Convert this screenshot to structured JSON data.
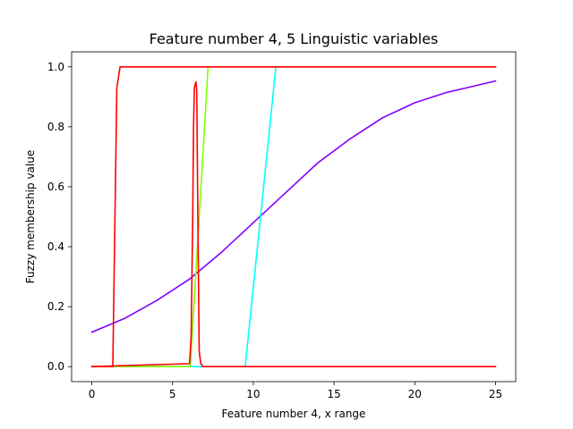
{
  "chart_data": {
    "type": "line",
    "title": "Feature number 4, 5 Linguistic variables",
    "xlabel": "Feature number 4, x range",
    "ylabel": "Fuzzy membership value",
    "xlim": [
      -1.25,
      26.25
    ],
    "ylim": [
      -0.05,
      1.05
    ],
    "xticks": [
      0,
      5,
      10,
      15,
      20,
      25
    ],
    "yticks": [
      0.0,
      0.2,
      0.4,
      0.6,
      0.8,
      1.0
    ],
    "xtick_labels": [
      "0",
      "5",
      "10",
      "15",
      "20",
      "25"
    ],
    "ytick_labels": [
      "0.0",
      "0.2",
      "0.4",
      "0.6",
      "0.8",
      "1.0"
    ],
    "grid": false,
    "legend": "none",
    "series": [
      {
        "color": "#8000ff",
        "x": [
          0,
          2,
          4,
          6,
          8,
          10,
          12,
          14,
          16,
          18,
          20,
          22,
          24,
          25
        ],
        "y": [
          0.115,
          0.16,
          0.22,
          0.29,
          0.38,
          0.48,
          0.58,
          0.68,
          0.76,
          0.83,
          0.88,
          0.915,
          0.94,
          0.953
        ]
      },
      {
        "color": "#00ffff",
        "x": [
          0,
          9.5,
          11.4,
          25
        ],
        "y": [
          0.0,
          0.0,
          1.0,
          1.0
        ]
      },
      {
        "color": "#80ff00",
        "x": [
          0,
          6.1,
          7.2,
          25
        ],
        "y": [
          0.0,
          0.0,
          1.0,
          1.0
        ]
      },
      {
        "color": "#ff0000",
        "x": [
          0,
          6.05,
          6.15,
          6.25,
          6.3,
          6.35,
          6.45,
          6.5,
          6.55,
          6.65,
          6.75,
          6.9,
          25
        ],
        "y": [
          0.0,
          0.01,
          0.1,
          0.5,
          0.8,
          0.93,
          0.95,
          0.92,
          0.6,
          0.05,
          0.01,
          0.0,
          0.0
        ]
      },
      {
        "color": "#ff0000",
        "x": [
          0,
          1.3,
          1.55,
          1.75,
          25
        ],
        "y": [
          0.0,
          0.0,
          0.93,
          1.0,
          1.0
        ]
      }
    ]
  }
}
